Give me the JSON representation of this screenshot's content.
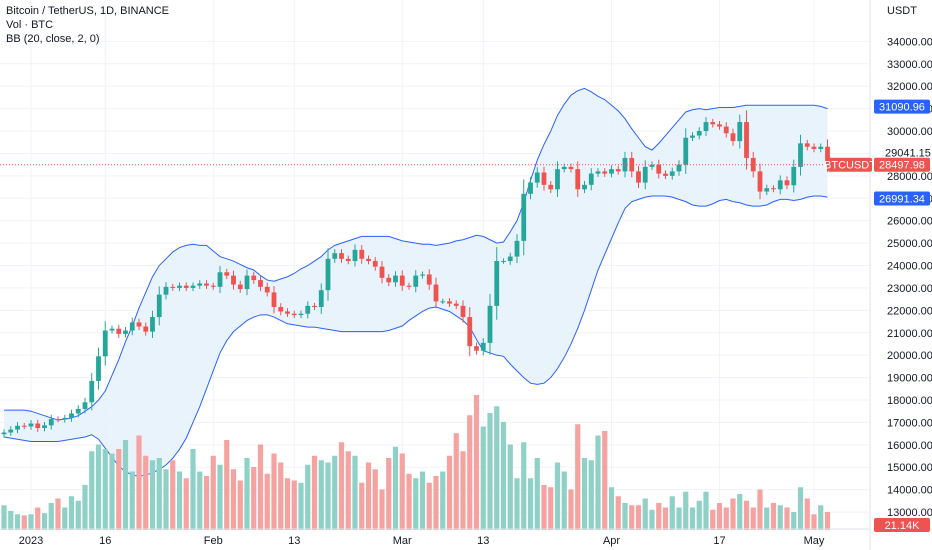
{
  "legend": {
    "symbol_line": "Bitcoin / TetherUS, 1D, BINANCE",
    "volume_line": "Vol · BTC",
    "bb_line": "BB (20, close, 2, 0)"
  },
  "colors": {
    "up": "#26a69a",
    "down": "#ef5350",
    "volume_up": "#8fd1c7",
    "volume_down": "#f5a3a1",
    "band": "#2962ff",
    "band_fill": "#e3f0fb",
    "price_line": "#ef5350"
  },
  "chart_data": {
    "type": "candlestick",
    "y_unit": "USDT",
    "ylim": [
      12200,
      35400
    ],
    "yticks": [
      13000,
      14000,
      15000,
      16000,
      17000,
      18000,
      19000,
      20000,
      21000,
      22000,
      23000,
      24000,
      25000,
      26000,
      27000,
      28000,
      29000,
      30000,
      31000,
      32000,
      33000,
      34000
    ],
    "ytick_labels": [
      "13000.00",
      "14000.00",
      "15000.00",
      "16000.00",
      "17000.00",
      "18000.00",
      "19000.00",
      "20000.00",
      "21000.00",
      "22000.00",
      "23000.00",
      "24000.00",
      "25000.00",
      "26000.00",
      "27000.00",
      "28000.00",
      "",
      "30000.00",
      "31000.00",
      "32000.00",
      "33000.00",
      "34000.00"
    ],
    "x_labels": [
      {
        "day": 4,
        "label": "2023"
      },
      {
        "day": 15,
        "label": "16"
      },
      {
        "day": 31,
        "label": "Feb"
      },
      {
        "day": 43,
        "label": "13"
      },
      {
        "day": 59,
        "label": "Mar"
      },
      {
        "day": 71,
        "label": "13"
      },
      {
        "day": 90,
        "label": "Apr"
      },
      {
        "day": 106,
        "label": "17"
      },
      {
        "day": 120,
        "label": "May"
      }
    ],
    "price_tags": [
      {
        "label": "31090.96",
        "value": 31090.96,
        "style": "band"
      },
      {
        "label": "29041.15",
        "value": 29041.15,
        "style": "plain"
      },
      {
        "label": "BTCUSDT",
        "value": 28497.98,
        "style": "symbol"
      },
      {
        "label": "28497.98",
        "value": 28497.98,
        "style": "last"
      },
      {
        "label": "26991.34",
        "value": 26991.34,
        "style": "band"
      }
    ],
    "volume_tag": "21.14K",
    "close": [
      16550,
      16680,
      16850,
      16820,
      16950,
      16750,
      16870,
      17150,
      17130,
      17200,
      17400,
      17600,
      17900,
      18850,
      19950,
      21100,
      21180,
      20950,
      21100,
      21460,
      21280,
      21050,
      21700,
      22700,
      23050,
      23000,
      23100,
      23000,
      23100,
      23200,
      23100,
      23050,
      23700,
      23550,
      23150,
      22950,
      23550,
      23350,
      23050,
      22800,
      22150,
      21950,
      21850,
      21790,
      21850,
      22200,
      22150,
      22900,
      24300,
      24550,
      24300,
      24200,
      24700,
      24300,
      24200,
      23950,
      23450,
      23250,
      23550,
      23100,
      23050,
      23550,
      23600,
      23150,
      22400,
      22400,
      22300,
      22200,
      21700,
      20400,
      20200,
      20550,
      22200,
      24200,
      24200,
      24400,
      25100,
      27200,
      27700,
      28150,
      27600,
      27400,
      28300,
      28400,
      28300,
      27400,
      27600,
      28100,
      28200,
      28100,
      28300,
      28200,
      28800,
      28200,
      27700,
      28400,
      28500,
      28100,
      28000,
      28200,
      28500,
      29700,
      29800,
      30000,
      30400,
      30300,
      30200,
      29900,
      29550,
      30400,
      28800,
      28200,
      27300,
      27450,
      27400,
      27800,
      27580,
      28400,
      29450,
      29300,
      29200,
      29300,
      28500
    ],
    "volume": [
      1100,
      850,
      700,
      650,
      700,
      1000,
      750,
      1200,
      1400,
      1000,
      1500,
      1300,
      2000,
      3500,
      3800,
      3600,
      3400,
      3600,
      4000,
      2600,
      4200,
      3300,
      3100,
      3200,
      2700,
      3100,
      2600,
      2300,
      3600,
      2600,
      2400,
      3300,
      2900,
      4000,
      2700,
      2200,
      3200,
      2800,
      3800,
      2500,
      3400,
      3000,
      2300,
      2200,
      2100,
      2900,
      3300,
      3100,
      3000,
      3300,
      3900,
      3500,
      3300,
      2100,
      3000,
      2700,
      1800,
      3200,
      3700,
      3400,
      2500,
      2300,
      2600,
      2100,
      2400,
      2600,
      3300,
      4300,
      3500,
      5100,
      6000,
      4600,
      5200,
      5500,
      4800,
      3800,
      2300,
      3900,
      2300,
      3200,
      2000,
      1900,
      3000,
      2600,
      1800,
      4700,
      3200,
      3100,
      4200,
      4400,
      1900,
      1500,
      1200,
      1100,
      1100,
      1400,
      900,
      1200,
      1000,
      1500,
      1000,
      1700,
      1000,
      1300,
      1700,
      900,
      1200,
      1000,
      1400,
      1600,
      1300,
      1000,
      1800,
      1000,
      1200,
      1100,
      1000,
      800,
      1900,
      1400,
      700,
      1100,
      800
    ],
    "bb_upper": [
      17550,
      17550,
      17550,
      17550,
      17500,
      17400,
      17300,
      17200,
      17100,
      17150,
      17200,
      17300,
      17500,
      17700,
      18000,
      18400,
      19100,
      19800,
      20600,
      21300,
      22100,
      22800,
      23500,
      24000,
      24300,
      24600,
      24800,
      24900,
      24950,
      24900,
      24900,
      24650,
      24400,
      24300,
      24200,
      24050,
      23900,
      23800,
      23550,
      23350,
      23300,
      23400,
      23500,
      23650,
      23850,
      24000,
      24200,
      24400,
      24700,
      24900,
      25000,
      25100,
      25200,
      25300,
      25300,
      25300,
      25300,
      25300,
      25200,
      25100,
      25050,
      25000,
      24950,
      24950,
      24900,
      24950,
      25000,
      25100,
      25150,
      25250,
      25350,
      25300,
      25150,
      25000,
      25050,
      25500,
      26000,
      26800,
      27800,
      28700,
      29400,
      30000,
      30700,
      31200,
      31600,
      31800,
      31900,
      31750,
      31550,
      31400,
      31150,
      30900,
      30550,
      30100,
      29700,
      29300,
      29150,
      29450,
      29800,
      30150,
      30500,
      30850,
      30950,
      31000,
      30950,
      31000,
      31050,
      31050,
      31050,
      31100,
      31150,
      31150,
      31150,
      31150,
      31150,
      31150,
      31150,
      31150,
      31150,
      31150,
      31150,
      31100,
      31000
    ],
    "bb_lower": [
      16350,
      16300,
      16250,
      16200,
      16150,
      16150,
      16150,
      16150,
      16150,
      16200,
      16250,
      16300,
      16350,
      16450,
      16250,
      15850,
      15450,
      15050,
      14800,
      14650,
      14600,
      14650,
      14750,
      14900,
      15100,
      15400,
      15800,
      16300,
      17000,
      17700,
      18500,
      19300,
      20100,
      20650,
      21050,
      21300,
      21550,
      21700,
      21800,
      21800,
      21700,
      21550,
      21400,
      21350,
      21300,
      21250,
      21250,
      21200,
      21150,
      21100,
      21050,
      21050,
      21050,
      21050,
      21050,
      21050,
      21050,
      21100,
      21200,
      21300,
      21550,
      21750,
      21950,
      22100,
      22150,
      22050,
      21950,
      21750,
      21550,
      21250,
      20700,
      20200,
      20100,
      20000,
      19950,
      19600,
      19300,
      19000,
      18750,
      18700,
      18750,
      19000,
      19400,
      19900,
      20500,
      21200,
      22000,
      22900,
      23800,
      24500,
      25200,
      25900,
      26550,
      26850,
      26950,
      27050,
      27100,
      27100,
      27100,
      27050,
      26950,
      26850,
      26700,
      26650,
      26650,
      26750,
      26900,
      26950,
      26850,
      26800,
      26700,
      26650,
      26650,
      26700,
      26850,
      26950,
      26950,
      26900,
      26950,
      27050,
      27100,
      27100,
      27050
    ]
  }
}
